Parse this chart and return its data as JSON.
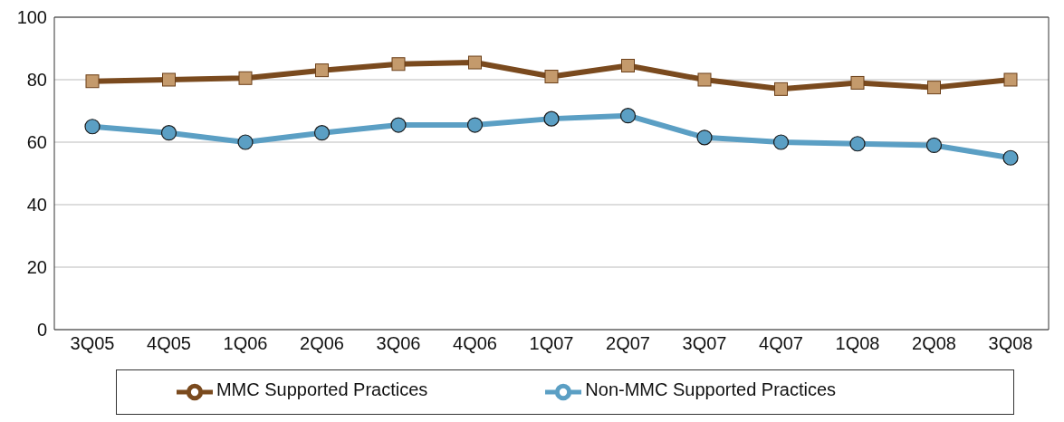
{
  "chart_data": {
    "type": "line",
    "categories": [
      "3Q05",
      "4Q05",
      "1Q06",
      "2Q06",
      "3Q06",
      "4Q06",
      "1Q07",
      "2Q07",
      "3Q07",
      "4Q07",
      "1Q08",
      "2Q08",
      "3Q08"
    ],
    "series": [
      {
        "name": "MMC Supported Practices",
        "color": "#7a4a1e",
        "marker": "square",
        "values": [
          79.5,
          80,
          80.5,
          83,
          85,
          85.5,
          81,
          84.5,
          80,
          77,
          79,
          77.5,
          80
        ]
      },
      {
        "name": "Non-MMC Supported Practices",
        "color": "#5b9fc4",
        "marker": "circle",
        "values": [
          65,
          63,
          60,
          63,
          65.5,
          65.5,
          67.5,
          68.5,
          61.5,
          60,
          59.5,
          59,
          55
        ]
      }
    ],
    "ylim": [
      0,
      100
    ],
    "yticks": [
      0,
      20,
      40,
      60,
      80,
      100
    ],
    "grid": "y",
    "legend": "bottom"
  }
}
